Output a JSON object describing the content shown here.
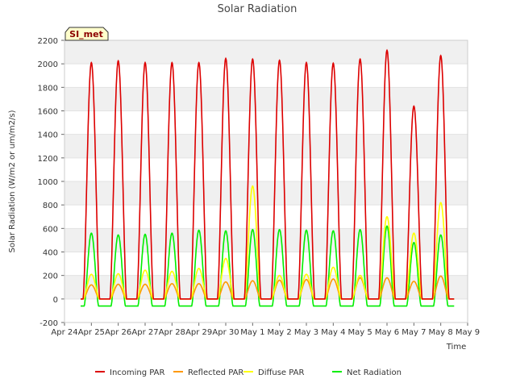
{
  "chart_data": {
    "type": "line",
    "title": "Solar Radiation",
    "xlabel": "Time",
    "ylabel": "Solar Radiation (W/m2 or um/m2/s)",
    "ylim": [
      -200,
      2200
    ],
    "yticks": [
      -200,
      0,
      200,
      400,
      600,
      800,
      1000,
      1200,
      1400,
      1600,
      1800,
      2000,
      2200
    ],
    "xlim": [
      "Apr 24",
      "May 9"
    ],
    "xticks": [
      "Apr 24",
      "Apr 25",
      "Apr 26",
      "Apr 27",
      "Apr 28",
      "Apr 29",
      "Apr 30",
      "May 1",
      "May 2",
      "May 3",
      "May 4",
      "May 5",
      "May 6",
      "May 7",
      "May 8",
      "May 9"
    ],
    "grid": "horizontal bands",
    "legend_position": "bottom",
    "station_tag": "SI_met",
    "series": [
      {
        "name": "Incoming PAR",
        "color": "#dd0000",
        "daily_peaks": [
          2010,
          2025,
          2010,
          2010,
          2010,
          2045,
          2040,
          2030,
          2010,
          2005,
          2040,
          2115,
          1640,
          2070
        ]
      },
      {
        "name": "Reflected PAR",
        "color": "#ff9900",
        "daily_peaks": [
          120,
          125,
          125,
          130,
          130,
          145,
          155,
          160,
          165,
          170,
          180,
          180,
          150,
          195
        ]
      },
      {
        "name": "Diffuse PAR",
        "color": "#ffff00",
        "daily_peaks": [
          210,
          215,
          245,
          235,
          260,
          345,
          960,
          200,
          210,
          270,
          200,
          700,
          560,
          820
        ]
      },
      {
        "name": "Net Radiation",
        "color": "#00ee00",
        "daily_peaks": [
          560,
          545,
          550,
          560,
          585,
          580,
          590,
          590,
          585,
          580,
          590,
          620,
          480,
          545
        ],
        "night_value": -60
      }
    ]
  }
}
